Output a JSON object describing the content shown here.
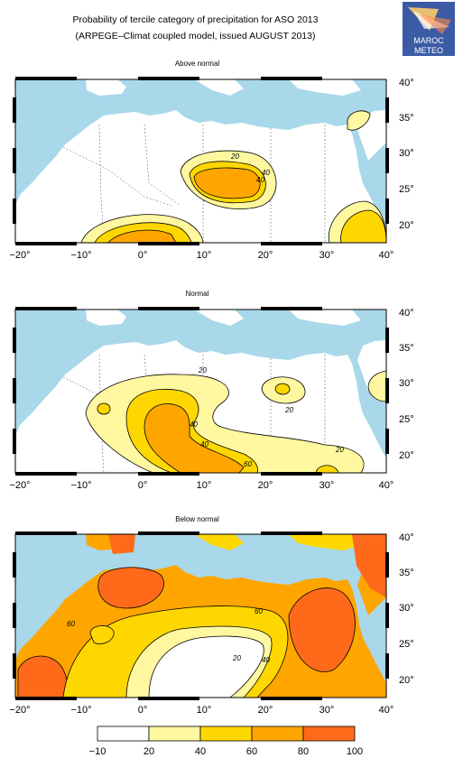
{
  "header": {
    "title_line1": "Probability of tercile category of precipitation for ASO 2013",
    "title_line2": "(ARPEGE–Climat coupled model, issued AUGUST 2013)"
  },
  "logo": {
    "text_top": "MAROC",
    "text_bottom": "METEO"
  },
  "panels": [
    {
      "title": "Above normal"
    },
    {
      "title": "Normal"
    },
    {
      "title": "Below normal"
    }
  ],
  "axes": {
    "x_ticks": [
      "−20°",
      "−10°",
      "0°",
      "10°",
      "20°",
      "30°",
      "40°"
    ],
    "y_ticks": [
      "40°",
      "35°",
      "30°",
      "25°",
      "20°"
    ]
  },
  "contour_labels": {
    "above": [
      "20",
      "40",
      "40"
    ],
    "normal": [
      "20",
      "20",
      "40",
      "40",
      "60",
      "20"
    ],
    "below": [
      "60",
      "60",
      "20",
      "40"
    ]
  },
  "legend": {
    "ticks": [
      "−10",
      "20",
      "40",
      "60",
      "80",
      "100"
    ],
    "colors": [
      "#ffffff",
      "#fff8a0",
      "#ffd700",
      "#ffa500",
      "#ff6a1a"
    ]
  },
  "colors": {
    "sea": "#a8d8ea",
    "land": "#ffffff",
    "c20": "#fff8a0",
    "c40": "#ffd700",
    "c60": "#ffa500",
    "c80": "#ff6a1a"
  }
}
